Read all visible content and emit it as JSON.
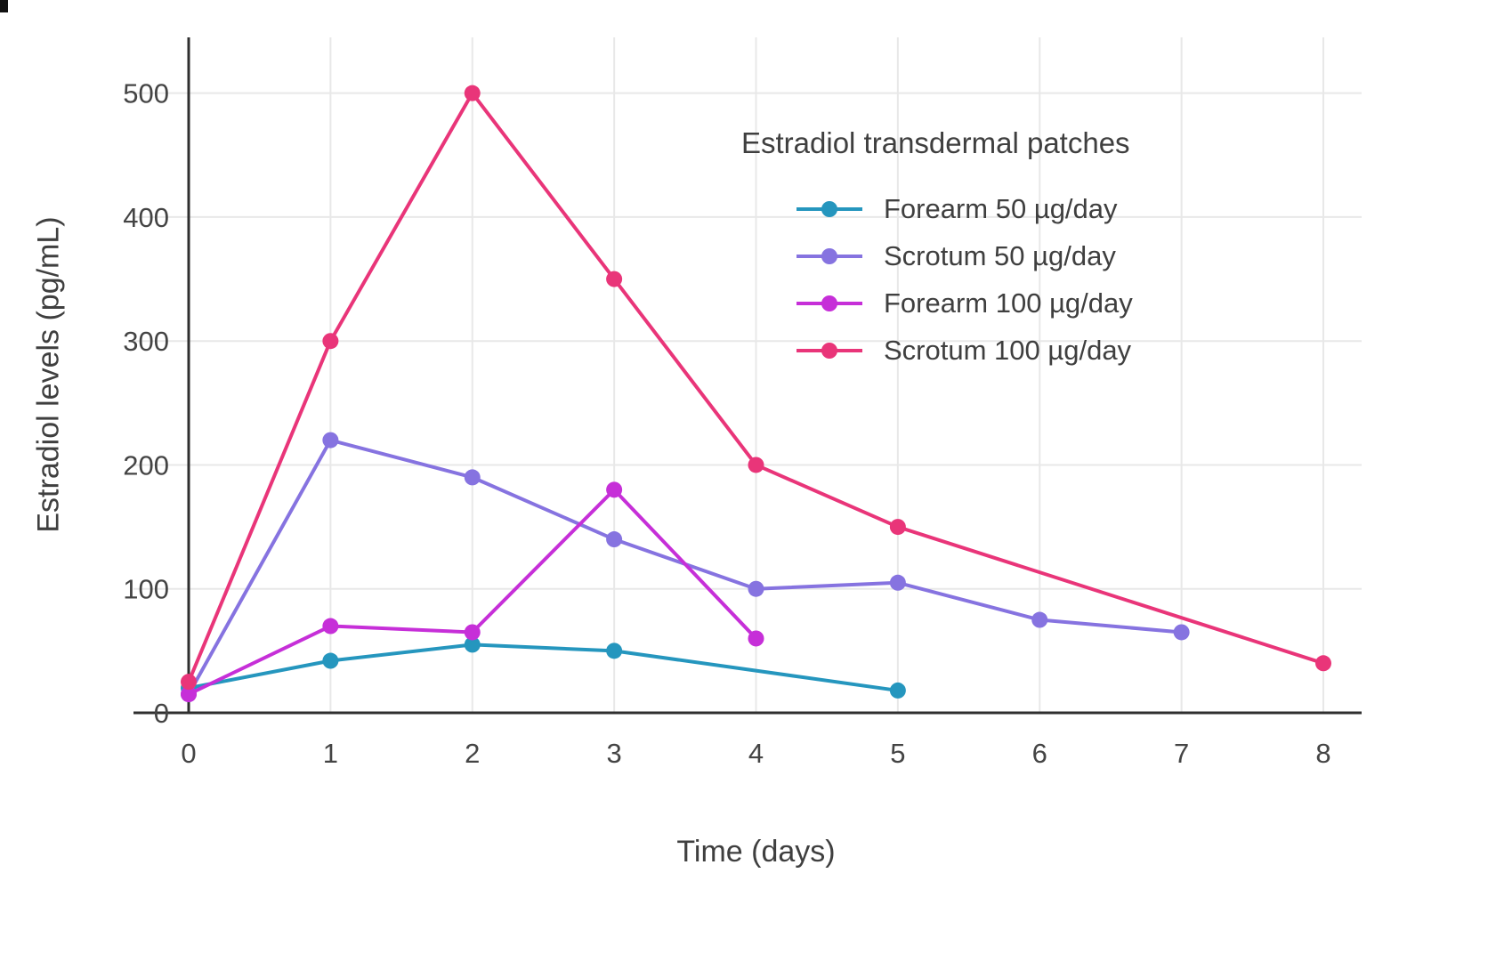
{
  "chart_data": {
    "type": "line",
    "legend_title": "Estradiol transdermal patches",
    "xlabel": "Time (days)",
    "ylabel": "Estradiol levels (pg/mL)",
    "x_ticks": [
      0,
      1,
      2,
      3,
      4,
      5,
      6,
      7,
      8
    ],
    "y_ticks": [
      0,
      100,
      200,
      300,
      400,
      500
    ],
    "xlim": [
      0,
      8
    ],
    "ylim": [
      0,
      545
    ],
    "grid": true,
    "legend_position": "inside-top-right",
    "series": [
      {
        "name": "Forearm 50 µg/day",
        "color": "#2596be",
        "x": [
          0,
          1,
          2,
          3,
          5
        ],
        "y": [
          20,
          42,
          55,
          50,
          18
        ]
      },
      {
        "name": "Scrotum 50 µg/day",
        "color": "#8673e0",
        "x": [
          0,
          1,
          2,
          3,
          4,
          5,
          6,
          7
        ],
        "y": [
          15,
          220,
          190,
          140,
          100,
          105,
          75,
          65
        ]
      },
      {
        "name": "Forearm 100 µg/day",
        "color": "#c62fd8",
        "x": [
          0,
          1,
          2,
          3,
          4
        ],
        "y": [
          15,
          70,
          65,
          180,
          60
        ]
      },
      {
        "name": "Scrotum 100 µg/day",
        "color": "#e93579",
        "x": [
          0,
          1,
          2,
          3,
          4,
          5,
          8
        ],
        "y": [
          25,
          300,
          500,
          350,
          200,
          150,
          40
        ]
      }
    ]
  }
}
